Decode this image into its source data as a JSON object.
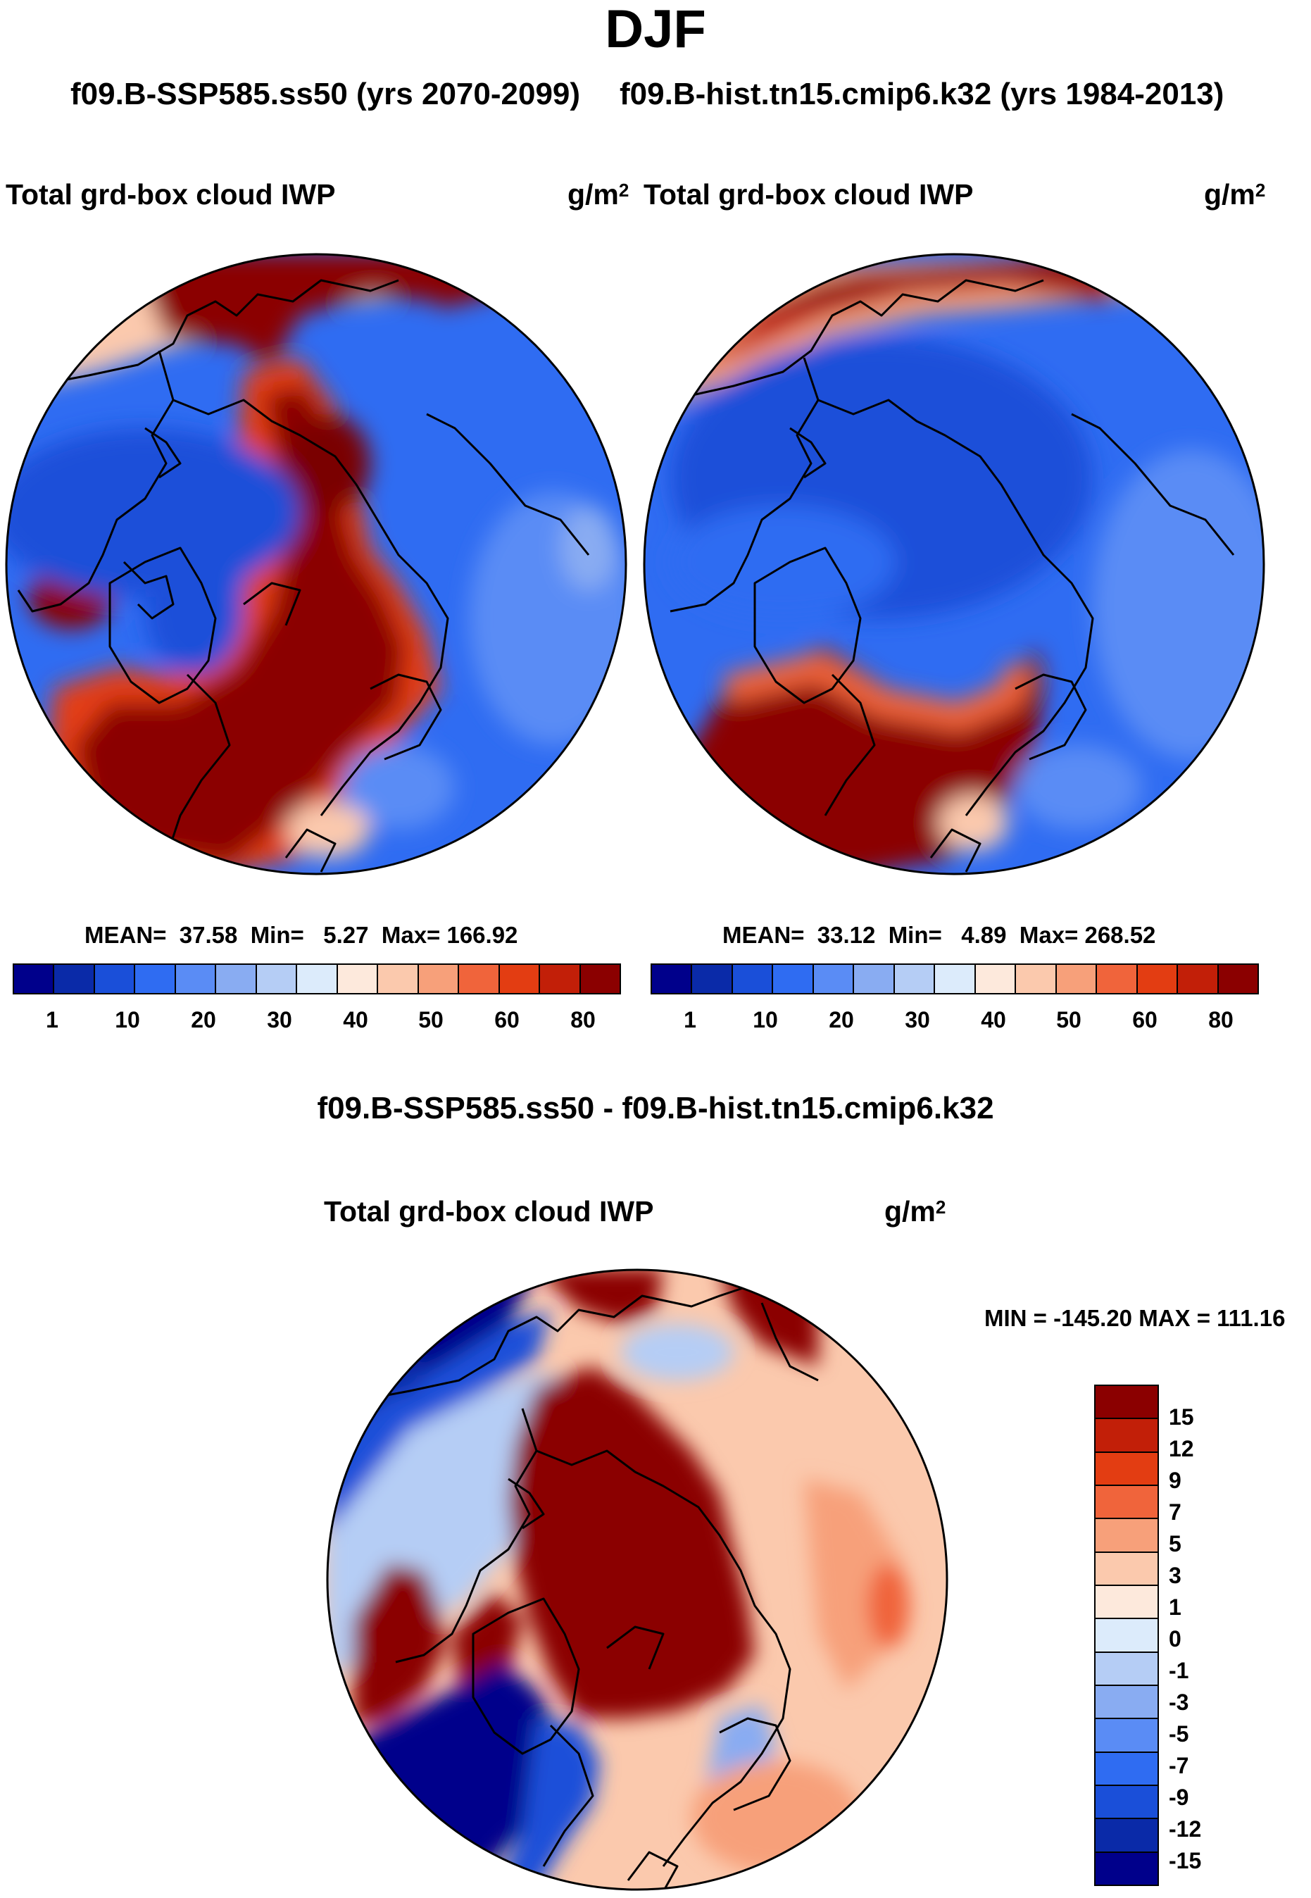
{
  "header": {
    "season": "DJF",
    "left_run": "f09.B-SSP585.ss50 (yrs 2070-2099)",
    "right_run": "f09.B-hist.tn15.cmip6.k32 (yrs 1984-2013)",
    "diff_title": "f09.B-SSP585.ss50 - f09.B-hist.tn15.cmip6.k32"
  },
  "panels": [
    {
      "id": "left",
      "variable": "Total grd-box cloud IWP",
      "units_base": "g/m",
      "units_exp": "2",
      "stats": "MEAN=  37.58  Min=   5.27  Max= 166.92"
    },
    {
      "id": "right",
      "variable": "Total grd-box cloud IWP",
      "units_base": "g/m",
      "units_exp": "2",
      "stats": "MEAN=  33.12  Min=   4.89  Max= 268.52"
    },
    {
      "id": "diff",
      "variable": "Total grd-box cloud IWP",
      "units_base": "g/m",
      "units_exp": "2",
      "stats": "MIN = -145.20 MAX = 111.16"
    }
  ],
  "colorbar_abs": {
    "labels": [
      "1",
      "10",
      "20",
      "30",
      "40",
      "50",
      "60",
      "80"
    ],
    "colors": [
      "#00008b",
      "#0a2aa8",
      "#1a4fd9",
      "#2f6cf2",
      "#5a8cf5",
      "#89acf2",
      "#b5cdf5",
      "#dcebfb",
      "#fde9dc",
      "#fbc9ad",
      "#f7a07a",
      "#f0643b",
      "#e33d12",
      "#c21f08",
      "#8b0000"
    ]
  },
  "colorbar_diff": {
    "labels": [
      "15",
      "12",
      "9",
      "7",
      "5",
      "3",
      "1",
      "0",
      "-1",
      "-3",
      "-5",
      "-7",
      "-9",
      "-12",
      "-15"
    ],
    "colors": [
      "#8b0000",
      "#c21f08",
      "#e33d12",
      "#f0643b",
      "#f7a07a",
      "#fbc9ad",
      "#fde9dc",
      "#dcebfb",
      "#b5cdf5",
      "#89acf2",
      "#5a8cf5",
      "#2f6cf2",
      "#1a4fd9",
      "#0a2aa8",
      "#00008b"
    ]
  }
}
